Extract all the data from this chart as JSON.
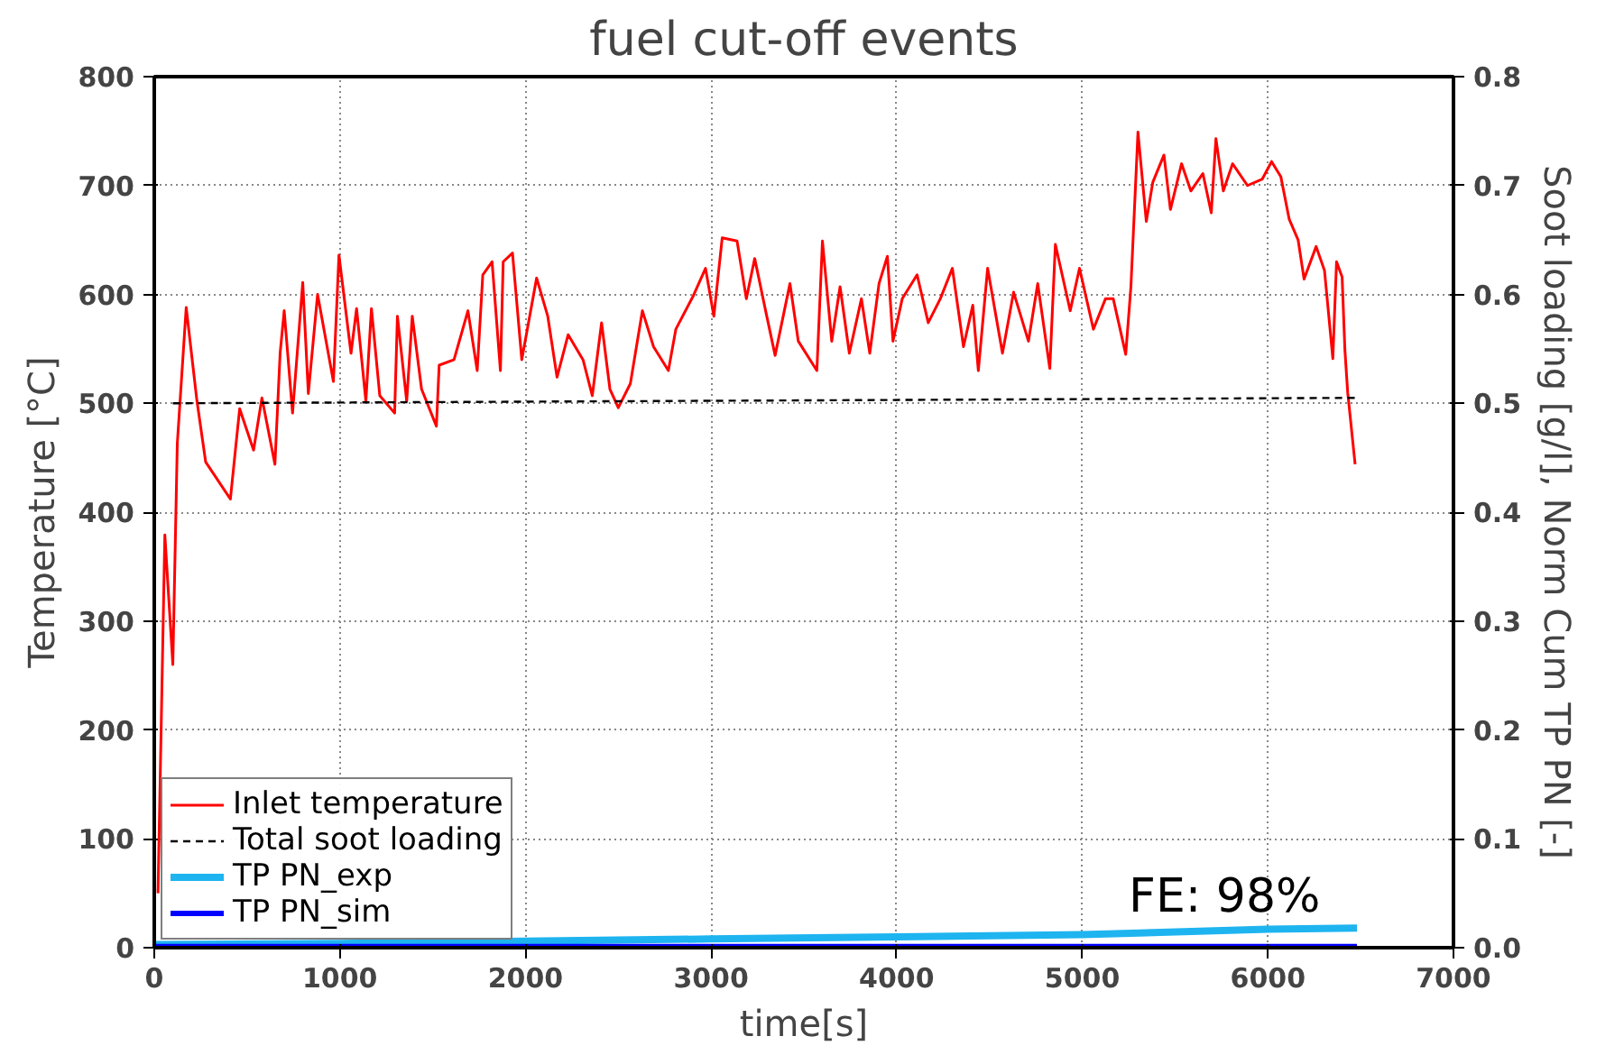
{
  "chart_data": {
    "type": "line",
    "title": "fuel cut-off events",
    "xlabel": "time[s]",
    "ylabel": "Temperature [°C]",
    "y2label": "Soot loading [g/l], Norm Cum TP PN [-]",
    "xlim": [
      0,
      7000
    ],
    "xticks": [
      0,
      1000,
      2000,
      3000,
      4000,
      5000,
      6000,
      7000
    ],
    "ylim": [
      0,
      800
    ],
    "yticks": [
      0,
      100,
      200,
      300,
      400,
      500,
      600,
      700,
      800
    ],
    "y2lim": [
      0,
      0.8
    ],
    "y2ticks": [
      {
        "value": 0,
        "label": "0.0"
      },
      0.1,
      0.2,
      0.3,
      0.4,
      0.5,
      0.6,
      0.7,
      0.8
    ],
    "grid": true,
    "legend": "bottom left",
    "annotations": [
      "FE: 98%"
    ],
    "series": [
      {
        "name": "Inlet temperature",
        "color": "#ff0000",
        "line_style": "solid",
        "x": [
          20,
          57,
          100,
          124,
          172,
          230,
          277,
          410,
          460,
          535,
          580,
          650,
          678,
          700,
          745,
          800,
          830,
          880,
          965,
          995,
          1060,
          1090,
          1140,
          1170,
          1215,
          1295,
          1310,
          1360,
          1390,
          1440,
          1520,
          1535,
          1615,
          1690,
          1740,
          1770,
          1820,
          1865,
          1880,
          1930,
          1980,
          2060,
          2120,
          2170,
          2230,
          2310,
          2360,
          2410,
          2455,
          2500,
          2565,
          2630,
          2690,
          2770,
          2810,
          2905,
          2970,
          3015,
          3060,
          3140,
          3190,
          3235,
          3300,
          3345,
          3425,
          3470,
          3570,
          3600,
          3650,
          3695,
          3745,
          3810,
          3855,
          3905,
          3950,
          3980,
          4030,
          4110,
          4170,
          4235,
          4300,
          4360,
          4410,
          4440,
          4490,
          4570,
          4630,
          4710,
          4760,
          4825,
          4855,
          4935,
          4985,
          5060,
          5125,
          5167,
          5234,
          5262,
          5300,
          5345,
          5380,
          5440,
          5475,
          5535,
          5585,
          5650,
          5695,
          5720,
          5760,
          5810,
          5890,
          5970,
          6020,
          6070,
          6115,
          6163,
          6195,
          6260,
          6305,
          6350,
          6370,
          6400,
          6415,
          6430,
          6470
        ],
        "values": [
          50,
          379,
          260,
          463,
          588,
          502,
          446,
          412,
          495,
          457,
          505,
          444,
          546,
          585,
          491,
          611,
          509,
          600,
          520,
          636,
          546,
          587,
          502,
          587,
          507,
          491,
          580,
          502,
          580,
          513,
          479,
          535,
          540,
          585,
          530,
          618,
          630,
          530,
          630,
          638,
          540,
          615,
          580,
          524,
          563,
          540,
          507,
          574,
          513,
          496,
          518,
          585,
          552,
          530,
          568,
          599,
          624,
          580,
          652,
          649,
          596,
          633,
          580,
          544,
          610,
          557,
          530,
          649,
          557,
          607,
          546,
          596,
          546,
          610,
          635,
          557,
          596,
          618,
          574,
          596,
          624,
          552,
          590,
          530,
          624,
          546,
          602,
          557,
          610,
          532,
          646,
          585,
          624,
          568,
          596,
          596,
          545,
          607,
          749,
          667,
          703,
          728,
          678,
          720,
          695,
          711,
          675,
          743,
          695,
          720,
          700,
          706,
          722,
          708,
          669,
          650,
          614,
          644,
          622,
          541,
          630,
          616,
          549,
          510,
          444
        ]
      },
      {
        "name": "Total soot loading",
        "color": "#000000",
        "line_style": "dashed",
        "axis": "y2",
        "x": [
          100,
          6480
        ],
        "values": [
          0.5,
          0.505
        ]
      },
      {
        "name": "TP PN_exp",
        "color": "#1eb4f0",
        "line_style": "solid",
        "axis": "y2",
        "x": [
          0,
          1000,
          2000,
          3000,
          4000,
          5000,
          6000,
          6480
        ],
        "values": [
          0.003,
          0.004,
          0.006,
          0.008,
          0.01,
          0.012,
          0.017,
          0.018
        ]
      },
      {
        "name": "TP PN_sim",
        "color": "#0000ff",
        "line_style": "solid",
        "axis": "y2",
        "x": [
          0,
          6480
        ],
        "values": [
          0.001,
          0.001
        ]
      }
    ]
  }
}
